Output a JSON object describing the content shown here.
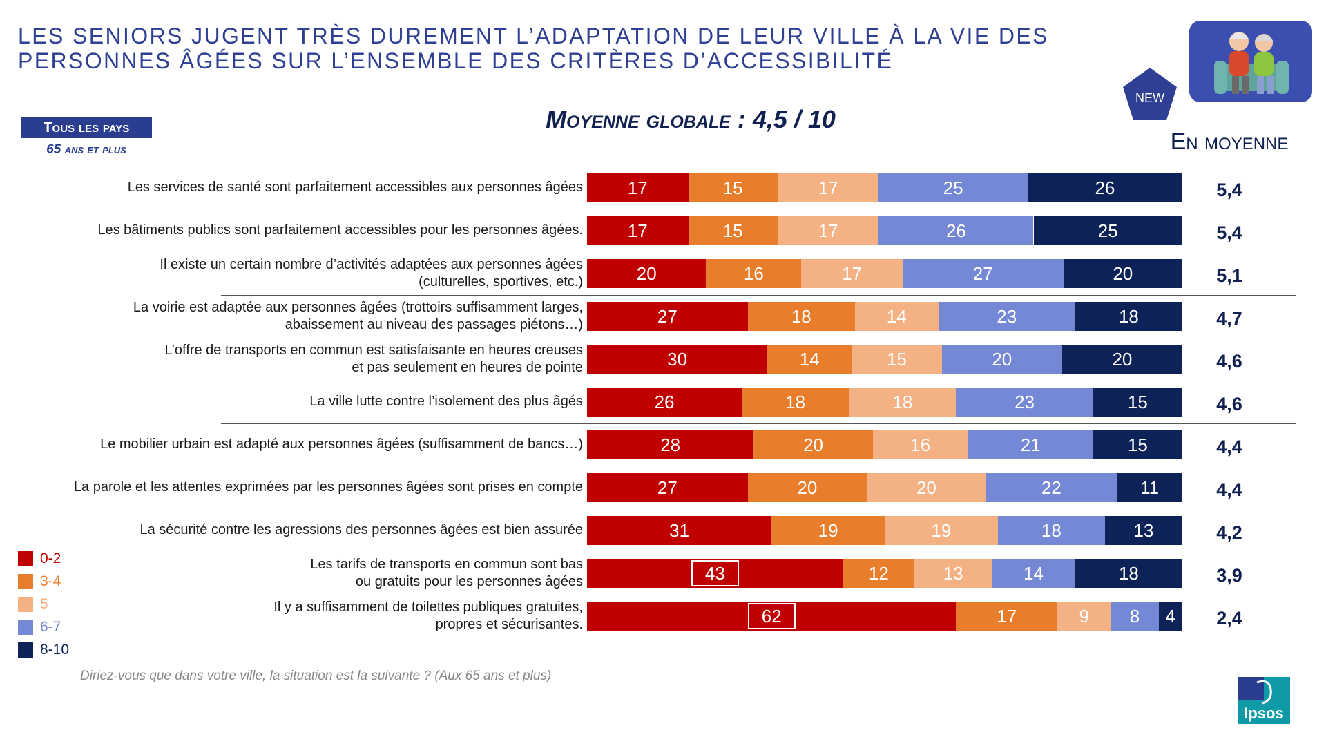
{
  "title": {
    "line1": "LES SENIORS JUGENT TRÈS DUREMENT L’ADAPTATION DE LEUR VILLE À LA VIE DES",
    "line2": "PERSONNES ÂGÉES SUR L’ENSEMBLE DES CRITÈRES D’ACCESSIBILITÉ"
  },
  "scope": {
    "label": "Tous les pays",
    "sublabel": "65 ans et plus"
  },
  "global_average": "Moyenne globale : 4,5 / 10",
  "average_header": "En moyenne",
  "badge": "NEW",
  "source": "Diriez-vous que dans votre ville, la situation est la suivante ? (Aux 65 ans et plus)",
  "logo": "Ipsos",
  "colors": {
    "c0_2": "#c00000",
    "c3_4": "#e87d2b",
    "c5": "#f4b183",
    "c6_7": "#7588d6",
    "c8_10": "#0d2357"
  },
  "icons": {
    "badge": "pentagon-badge-icon",
    "illustration": "seniors-couple-icon",
    "logo": "ipsos-logo-icon"
  },
  "chart_data": {
    "type": "bar",
    "orientation": "horizontal",
    "stacked": true,
    "unit": "%",
    "categories": [
      [
        "Les services de santé sont parfaitement accessibles aux personnes âgées"
      ],
      [
        "Les bâtiments publics sont parfaitement accessibles pour les personnes âgées."
      ],
      [
        "Il existe un certain nombre d’activités adaptées aux personnes âgées",
        "(culturelles, sportives, etc.)"
      ],
      [
        "La voirie est adaptée aux personnes âgées (trottoirs suffisamment larges,",
        "abaissement au niveau des passages piétons…)"
      ],
      [
        "L’offre de transports en commun est satisfaisante en heures creuses",
        "et pas seulement en heures de pointe"
      ],
      [
        "La ville lutte contre l’isolement des plus âgés"
      ],
      [
        "Le mobilier urbain est adapté aux personnes âgées (suffisamment de bancs…)"
      ],
      [
        "La parole et les attentes exprimées par les personnes âgées sont prises en compte"
      ],
      [
        "La sécurité contre les agressions des personnes âgées est bien assurée"
      ],
      [
        "Les tarifs de transports en commun sont bas",
        "ou gratuits pour les personnes âgées"
      ],
      [
        "Il y a suffisamment de toilettes publiques gratuites,",
        "propres et sécurisantes."
      ]
    ],
    "series": [
      {
        "name": "0-2",
        "color": "#c00000",
        "values": [
          17,
          17,
          20,
          27,
          30,
          26,
          28,
          27,
          31,
          43,
          62
        ]
      },
      {
        "name": "3-4",
        "color": "#e87d2b",
        "values": [
          15,
          15,
          16,
          18,
          14,
          18,
          20,
          20,
          19,
          12,
          17
        ]
      },
      {
        "name": "5",
        "color": "#f4b183",
        "values": [
          17,
          17,
          17,
          14,
          15,
          18,
          16,
          20,
          19,
          13,
          9
        ]
      },
      {
        "name": "6-7",
        "color": "#7588d6",
        "values": [
          25,
          26,
          27,
          23,
          20,
          23,
          21,
          22,
          18,
          14,
          8
        ]
      },
      {
        "name": "8-10",
        "color": "#0d2357",
        "values": [
          26,
          25,
          20,
          18,
          20,
          15,
          15,
          11,
          13,
          18,
          4
        ]
      }
    ],
    "averages": [
      "5,4",
      "5,4",
      "5,1",
      "4,7",
      "4,6",
      "4,6",
      "4,4",
      "4,4",
      "4,2",
      "3,9",
      "2,4"
    ],
    "boxed_labels": [
      [
        9,
        0
      ],
      [
        10,
        0
      ]
    ],
    "separators_after_rows": [
      2,
      5,
      9
    ],
    "legend": [
      {
        "label": "0-2",
        "color": "#c00000"
      },
      {
        "label": "3-4",
        "color": "#e87d2b"
      },
      {
        "label": "5",
        "color": "#f4b183"
      },
      {
        "label": "6-7",
        "color": "#7588d6"
      },
      {
        "label": "8-10",
        "color": "#0d2357"
      }
    ],
    "legend_position": "bottom-left",
    "xlim": [
      0,
      100
    ],
    "grid": false
  }
}
